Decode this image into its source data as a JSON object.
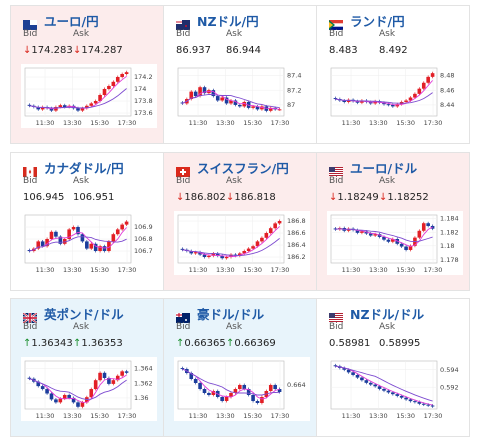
{
  "labels": {
    "bid": "Bid",
    "ask": "Ask"
  },
  "colors": {
    "up_candle": "#e21f26",
    "down_candle": "#1c3d9c",
    "ma_short": "#e23ad8",
    "ma_long": "#7d4bd0",
    "arrow_down": "#d9261c",
    "arrow_up": "#168c2a"
  },
  "cards": [
    {
      "title": "ユーロ/円",
      "flag": "eu-flag",
      "trend": "down",
      "bid": "174.283",
      "ask": "174.287",
      "arrow": "down",
      "chart_data": {
        "type": "candlestick",
        "x_ticks": [
          "11:30",
          "13:30",
          "15:30",
          "17:30"
        ],
        "y_ticks": [
          "174.2",
          "174",
          "173.8",
          "173.6"
        ],
        "ylim": [
          173.55,
          174.35
        ],
        "close": [
          173.72,
          173.7,
          173.66,
          173.7,
          173.68,
          173.64,
          173.7,
          173.73,
          173.7,
          173.72,
          173.68,
          173.64,
          173.68,
          173.72,
          173.76,
          173.8,
          173.9,
          174.0,
          174.05,
          174.12,
          174.2,
          174.25,
          174.28
        ]
      }
    },
    {
      "title": "NZドル/円",
      "flag": "nz-flag",
      "trend": "flat",
      "bid": "86.937",
      "ask": "86.944",
      "arrow": "",
      "chart_data": {
        "type": "candlestick",
        "x_ticks": [
          "11:30",
          "13:30",
          "15:30",
          "17:30"
        ],
        "y_ticks": [
          "87.4",
          "87.2",
          "87"
        ],
        "ylim": [
          86.85,
          87.5
        ],
        "close": [
          87.02,
          87.08,
          87.18,
          87.12,
          87.24,
          87.16,
          87.2,
          87.12,
          87.06,
          87.1,
          87.02,
          87.06,
          87.0,
          86.98,
          87.04,
          86.96,
          86.98,
          86.94,
          86.98,
          86.92,
          86.96,
          86.94,
          86.94
        ]
      }
    },
    {
      "title": "ランド/円",
      "flag": "za-flag",
      "trend": "flat",
      "bid": "8.483",
      "ask": "8.492",
      "arrow": "",
      "chart_data": {
        "type": "candlestick",
        "x_ticks": [
          "11:30",
          "13:30",
          "15:30",
          "17:30"
        ],
        "y_ticks": [
          "8.48",
          "8.46",
          "8.44"
        ],
        "ylim": [
          8.425,
          8.49
        ],
        "close": [
          8.448,
          8.446,
          8.444,
          8.447,
          8.445,
          8.443,
          8.446,
          8.444,
          8.442,
          8.445,
          8.443,
          8.441,
          8.44,
          8.438,
          8.441,
          8.444,
          8.446,
          8.45,
          8.455,
          8.462,
          8.47,
          8.478,
          8.483
        ]
      }
    },
    {
      "title": "カナダドル/円",
      "flag": "ca-flag",
      "trend": "flat",
      "bid": "106.945",
      "ask": "106.951",
      "arrow": "",
      "chart_data": {
        "type": "candlestick",
        "x_ticks": [
          "11:30",
          "13:30",
          "15:30",
          "17:30"
        ],
        "y_ticks": [
          "106.9",
          "106.8",
          "106.7"
        ],
        "ylim": [
          106.6,
          107.0
        ],
        "close": [
          106.7,
          106.72,
          106.78,
          106.74,
          106.8,
          106.86,
          106.82,
          106.76,
          106.8,
          106.88,
          106.9,
          106.84,
          106.78,
          106.72,
          106.76,
          106.7,
          106.74,
          106.7,
          106.78,
          106.84,
          106.88,
          106.92,
          106.945
        ]
      }
    },
    {
      "title": "スイスフラン/円",
      "flag": "ch-flag",
      "trend": "down",
      "bid": "186.802",
      "ask": "186.818",
      "arrow": "down",
      "chart_data": {
        "type": "candlestick",
        "x_ticks": [
          "11:30",
          "13:30",
          "15:30",
          "17:30"
        ],
        "y_ticks": [
          "186.8",
          "186.6",
          "186.4",
          "186.2"
        ],
        "ylim": [
          186.1,
          186.9
        ],
        "close": [
          186.32,
          186.3,
          186.26,
          186.28,
          186.24,
          186.2,
          186.22,
          186.26,
          186.22,
          186.18,
          186.2,
          186.24,
          186.22,
          186.26,
          186.3,
          186.34,
          186.38,
          186.46,
          186.52,
          186.6,
          186.68,
          186.76,
          186.8
        ]
      }
    },
    {
      "title": "ユーロ/ドル",
      "flag": "us-flag",
      "trend": "down",
      "bid": "1.18249",
      "ask": "1.18252",
      "arrow": "down",
      "chart_data": {
        "type": "candlestick",
        "x_ticks": [
          "11:30",
          "13:30",
          "15:30",
          "17:30"
        ],
        "y_ticks": [
          "1.184",
          "1.182",
          "1.18",
          "1.178"
        ],
        "ylim": [
          1.1775,
          1.1845
        ],
        "close": [
          1.1824,
          1.1826,
          1.1822,
          1.1825,
          1.1823,
          1.1819,
          1.1821,
          1.1818,
          1.1815,
          1.1817,
          1.1813,
          1.1809,
          1.1806,
          1.181,
          1.1803,
          1.1799,
          1.1794,
          1.18,
          1.1812,
          1.1822,
          1.1833,
          1.1829,
          1.1825
        ]
      }
    },
    {
      "title": "英ポンド/ドル",
      "flag": "gb-flag",
      "trend": "up",
      "bid": "1.36343",
      "ask": "1.36353",
      "arrow": "up",
      "chart_data": {
        "type": "candlestick",
        "x_ticks": [
          "11:30",
          "13:30",
          "15:30",
          "17:30"
        ],
        "y_ticks": [
          "1.364",
          "1.362",
          "1.36"
        ],
        "ylim": [
          1.3585,
          1.365
        ],
        "close": [
          1.3626,
          1.3622,
          1.3616,
          1.3612,
          1.3606,
          1.3598,
          1.3594,
          1.3599,
          1.3604,
          1.36,
          1.3594,
          1.3588,
          1.3594,
          1.3601,
          1.3612,
          1.3624,
          1.3634,
          1.3627,
          1.3619,
          1.3624,
          1.363,
          1.3636,
          1.3634
        ]
      }
    },
    {
      "title": "豪ドル/ドル",
      "flag": "au-flag",
      "trend": "up",
      "bid": "0.66365",
      "ask": "0.66369",
      "arrow": "up",
      "chart_data": {
        "type": "candlestick",
        "x_ticks": [
          "11:30",
          "13:30",
          "15:30",
          "17:30"
        ],
        "y_ticks": [
          "0.664"
        ],
        "ylim": [
          0.6628,
          0.6652
        ],
        "close": [
          0.6648,
          0.6646,
          0.6643,
          0.6641,
          0.6638,
          0.6636,
          0.6635,
          0.6637,
          0.6634,
          0.6632,
          0.6634,
          0.6636,
          0.6638,
          0.664,
          0.6638,
          0.6635,
          0.6632,
          0.6631,
          0.6634,
          0.6637,
          0.664,
          0.6638,
          0.66365
        ]
      }
    },
    {
      "title": "NZドル/ドル",
      "flag": "us-flag",
      "trend": "flat",
      "bid": "0.58981",
      "ask": "0.58995",
      "arrow": "",
      "chart_data": {
        "type": "candlestick",
        "x_ticks": [
          "11:30",
          "13:30",
          "15:30",
          "17:30"
        ],
        "y_ticks": [
          "0.594",
          "0.592"
        ],
        "ylim": [
          0.5895,
          0.595
        ],
        "close": [
          0.5944,
          0.5942,
          0.594,
          0.5937,
          0.5934,
          0.5931,
          0.5928,
          0.5925,
          0.5923,
          0.5921,
          0.5918,
          0.5916,
          0.5914,
          0.5912,
          0.591,
          0.5908,
          0.5906,
          0.5904,
          0.5903,
          0.5901,
          0.59,
          0.5899,
          0.5898
        ]
      }
    }
  ]
}
